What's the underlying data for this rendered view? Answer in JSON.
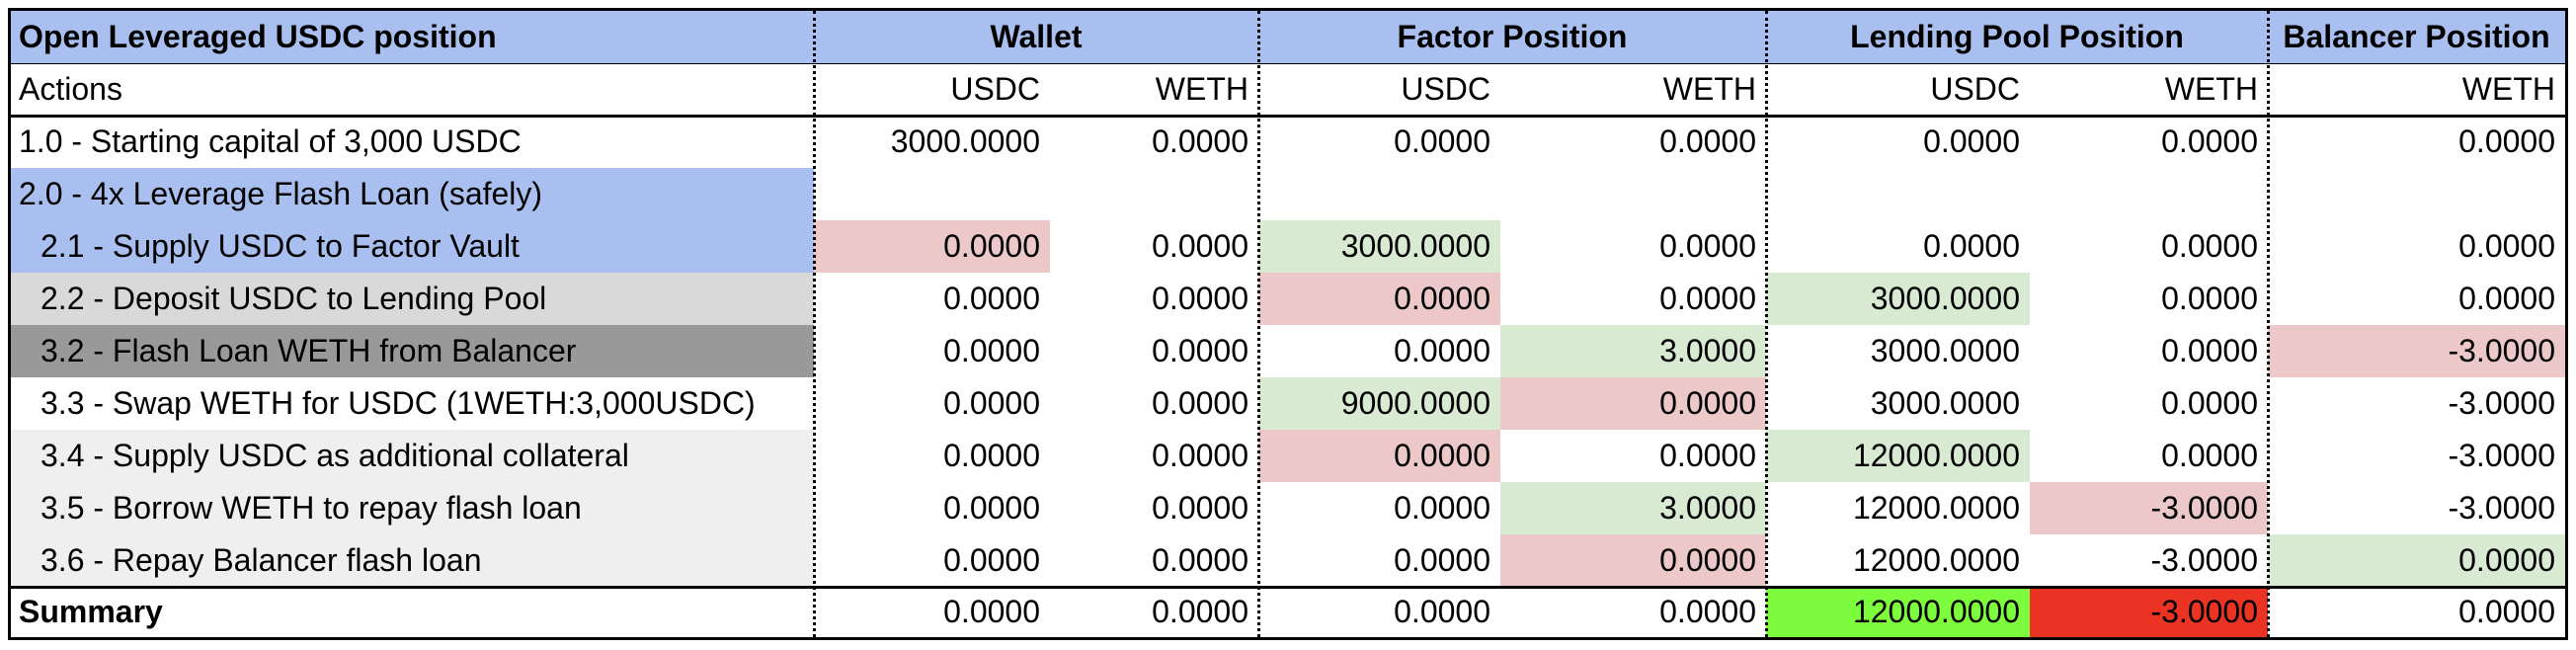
{
  "colors": {
    "header_blue": "#a8bfef",
    "step_blue": "#a8bfef",
    "light_gray": "#d9d9d9",
    "dark_gray": "#999999",
    "pale_gray": "#efefef",
    "pink": "#ecc9c8",
    "green": "#d9ead3",
    "bright_green": "#7cfc3c",
    "bright_red": "#ea3323"
  },
  "groups": [
    "Open Leveraged USDC position",
    "Wallet",
    "Factor Position",
    "Lending Pool Position",
    "Balancer Position"
  ],
  "subheaders": [
    "Actions",
    "USDC",
    "WETH",
    "USDC",
    "WETH",
    "USDC",
    "WETH",
    "WETH"
  ],
  "rows": [
    {
      "label": "1.0 - Starting capital of 3,000 USDC",
      "label_bg": "",
      "values": [
        "3000.0000",
        "0.0000",
        "0.0000",
        "0.0000",
        "0.0000",
        "0.0000",
        "0.0000"
      ],
      "bg": [
        "",
        "",
        "",
        "",
        "",
        "",
        ""
      ]
    },
    {
      "label": "2.0 - 4x Leverage Flash Loan (safely)",
      "label_bg": "step_blue",
      "values": [
        "",
        "",
        "",
        "",
        "",
        "",
        ""
      ],
      "bg": [
        "",
        "",
        "",
        "",
        "",
        "",
        ""
      ]
    },
    {
      "label": "2.1 - Supply USDC to Factor Vault",
      "label_bg": "step_blue",
      "indent": true,
      "values": [
        "0.0000",
        "0.0000",
        "3000.0000",
        "0.0000",
        "0.0000",
        "0.0000",
        "0.0000"
      ],
      "bg": [
        "pink",
        "",
        "green",
        "",
        "",
        "",
        ""
      ]
    },
    {
      "label": "2.2 - Deposit USDC to Lending Pool",
      "label_bg": "light_gray",
      "indent": true,
      "values": [
        "0.0000",
        "0.0000",
        "0.0000",
        "0.0000",
        "3000.0000",
        "0.0000",
        "0.0000"
      ],
      "bg": [
        "",
        "",
        "pink",
        "",
        "green",
        "",
        ""
      ]
    },
    {
      "label": "3.2 - Flash Loan WETH from Balancer",
      "label_bg": "dark_gray",
      "indent": true,
      "values": [
        "0.0000",
        "0.0000",
        "0.0000",
        "3.0000",
        "3000.0000",
        "0.0000",
        "-3.0000"
      ],
      "bg": [
        "",
        "",
        "",
        "green",
        "",
        "",
        "pink"
      ]
    },
    {
      "label": "3.3 - Swap WETH for USDC (1WETH:3,000USDC)",
      "label_bg": "",
      "indent": true,
      "values": [
        "0.0000",
        "0.0000",
        "9000.0000",
        "0.0000",
        "3000.0000",
        "0.0000",
        "-3.0000"
      ],
      "bg": [
        "",
        "",
        "green",
        "pink",
        "",
        "",
        ""
      ]
    },
    {
      "label": "3.4 - Supply USDC as additional collateral",
      "label_bg": "pale_gray",
      "indent": true,
      "values": [
        "0.0000",
        "0.0000",
        "0.0000",
        "0.0000",
        "12000.0000",
        "0.0000",
        "-3.0000"
      ],
      "bg": [
        "",
        "",
        "pink",
        "",
        "green",
        "",
        ""
      ]
    },
    {
      "label": "3.5 - Borrow WETH to repay flash loan",
      "label_bg": "pale_gray",
      "indent": true,
      "values": [
        "0.0000",
        "0.0000",
        "0.0000",
        "3.0000",
        "12000.0000",
        "-3.0000",
        "-3.0000"
      ],
      "bg": [
        "",
        "",
        "",
        "green",
        "",
        "pink",
        ""
      ]
    },
    {
      "label": "3.6 - Repay Balancer flash loan",
      "label_bg": "pale_gray",
      "indent": true,
      "values": [
        "0.0000",
        "0.0000",
        "0.0000",
        "0.0000",
        "12000.0000",
        "-3.0000",
        "0.0000"
      ],
      "bg": [
        "",
        "",
        "",
        "pink",
        "",
        "",
        "green"
      ]
    }
  ],
  "summary": {
    "label": "Summary",
    "values": [
      "0.0000",
      "0.0000",
      "0.0000",
      "0.0000",
      "12000.0000",
      "-3.0000",
      "0.0000"
    ],
    "bg": [
      "",
      "",
      "",
      "",
      "bright_green",
      "bright_red",
      ""
    ]
  }
}
